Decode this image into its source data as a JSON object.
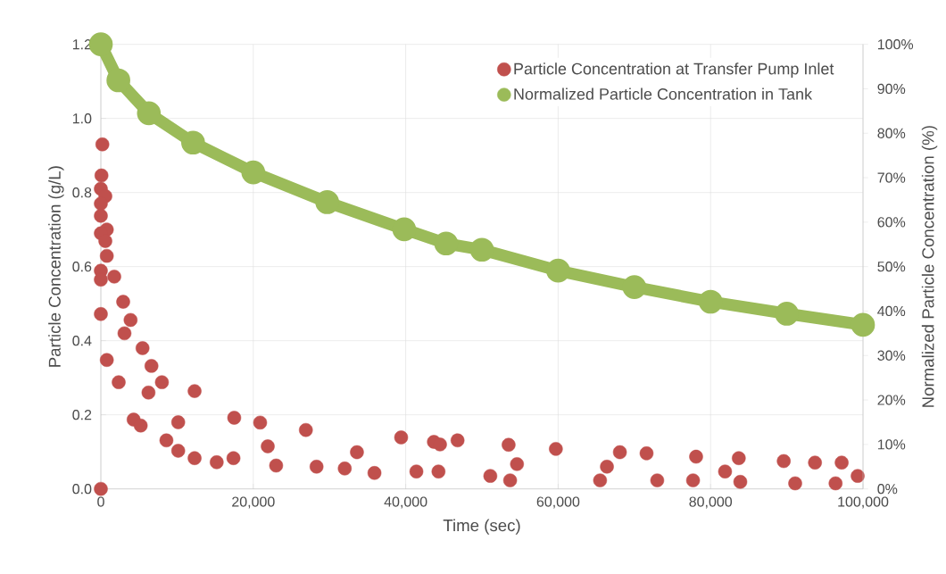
{
  "chart_data": {
    "type": "scatter",
    "xlabel": "Time (sec)",
    "ylabel": "Particle Concentration (g/L)",
    "y2label": "Normalized Particle Concentration (%)",
    "xlim": [
      0,
      100000
    ],
    "xticks": [
      0,
      {
        "value": 20000,
        "label": "20,000"
      },
      {
        "value": 40000,
        "label": "40,000"
      },
      {
        "value": 60000,
        "label": "60,000"
      },
      {
        "value": 80000,
        "label": "80,000"
      },
      {
        "value": 100000,
        "label": "100,000"
      }
    ],
    "ylim": [
      0,
      1.2
    ],
    "yticks": [
      {
        "value": 0,
        "label": "0.0"
      },
      0.2,
      0.4,
      0.6,
      0.8,
      {
        "value": 1,
        "label": "1.0"
      },
      1.2
    ],
    "y2lim": [
      0,
      100
    ],
    "y2ticks": [
      {
        "value": 0,
        "label": "0%"
      },
      {
        "value": 10,
        "label": "10%"
      },
      {
        "value": 20,
        "label": "20%"
      },
      {
        "value": 30,
        "label": "30%"
      },
      {
        "value": 40,
        "label": "40%"
      },
      {
        "value": 50,
        "label": "50%"
      },
      {
        "value": 60,
        "label": "60%"
      },
      {
        "value": 70,
        "label": "70%"
      },
      {
        "value": 80,
        "label": "80%"
      },
      {
        "value": 90,
        "label": "90%"
      },
      {
        "value": 100,
        "label": "100%"
      }
    ],
    "grid": true,
    "legend": "top right",
    "marker": "circle",
    "series": [
      {
        "name": "Particle Concentration at Transfer Pump Inlet",
        "color": "#c0504d",
        "x": [
          0,
          200,
          80,
          0,
          590,
          0,
          0,
          780,
          0,
          590,
          780,
          0,
          0,
          1760,
          2930,
          0,
          3900,
          780,
          5470,
          6640,
          8010,
          12300,
          2340,
          4300,
          5230,
          8600,
          10150,
          12300,
          15200,
          17500,
          20900,
          17400,
          23000,
          26900,
          28300,
          32000,
          35900,
          39400,
          41400,
          43700,
          3100,
          6250,
          10150,
          21900,
          33600,
          46800,
          44500,
          53500,
          44300,
          51100,
          53700,
          59700,
          65500,
          68100,
          71600,
          73000,
          78100,
          77700,
          83700,
          83900,
          89600,
          91100,
          93700,
          96400,
          97200,
          99300,
          66400,
          81900,
          54600
        ],
        "values": [
          0.0,
          0.93,
          0.846,
          0.81,
          0.79,
          0.77,
          0.737,
          0.7,
          0.69,
          0.669,
          0.629,
          0.589,
          0.565,
          0.573,
          0.505,
          0.472,
          0.456,
          0.348,
          0.38,
          0.332,
          0.288,
          0.264,
          0.288,
          0.187,
          0.171,
          0.131,
          0.103,
          0.083,
          0.072,
          0.192,
          0.179,
          0.083,
          0.063,
          0.159,
          0.06,
          0.055,
          0.043,
          0.139,
          0.047,
          0.127,
          0.42,
          0.26,
          0.18,
          0.115,
          0.099,
          0.131,
          0.12,
          0.119,
          0.047,
          0.035,
          0.023,
          0.108,
          0.023,
          0.099,
          0.096,
          0.023,
          0.087,
          0.023,
          0.083,
          0.019,
          0.075,
          0.015,
          0.071,
          0.015,
          0.071,
          0.035,
          0.06,
          0.047,
          0.067
        ]
      },
      {
        "name": "Normalized Particle Concentration in Tank",
        "type": "line",
        "axis": "y2",
        "color": "#9bbb59",
        "x": [
          0,
          2300,
          6300,
          12100,
          20000,
          29700,
          39800,
          45300,
          50000,
          60000,
          70000,
          80000,
          90000,
          100000
        ],
        "values": [
          100,
          91.9,
          84.5,
          77.9,
          71.2,
          64.5,
          58.4,
          55.2,
          53.8,
          49.1,
          45.4,
          42.1,
          39.4,
          36.9
        ]
      }
    ]
  }
}
